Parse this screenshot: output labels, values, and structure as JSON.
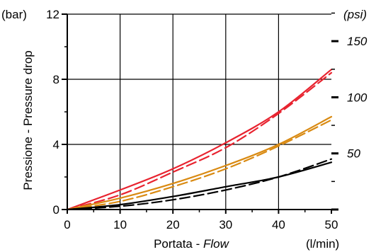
{
  "chart_data": {
    "type": "line",
    "ylabel": "Pressione - Pressure drop",
    "y_unit_left": "(bar)",
    "y_unit_right": "(psi)",
    "xlabel_it": "Portata - ",
    "xlabel_en": "Flow",
    "x_unit": "(l/min)",
    "xlim": [
      0,
      50
    ],
    "ylim": [
      0,
      12
    ],
    "x_ticks": [
      "0",
      "10",
      "20",
      "30",
      "40",
      "50"
    ],
    "y_ticks_left": [
      "0",
      "4",
      "8",
      "12"
    ],
    "y_ticks_right": [
      "50",
      "100",
      "150"
    ],
    "grid": true,
    "series": [
      {
        "color": "#e8232f",
        "dash": false,
        "x": [
          0,
          10,
          20,
          30,
          40,
          50
        ],
        "y": [
          0,
          1.2,
          2.5,
          4.1,
          6.0,
          8.6
        ]
      },
      {
        "color": "#e8232f",
        "dash": true,
        "x": [
          0,
          10,
          20,
          30,
          40,
          50
        ],
        "y": [
          0,
          0.9,
          2.3,
          3.8,
          5.9,
          8.4
        ]
      },
      {
        "color": "#d98a12",
        "dash": false,
        "x": [
          0,
          10,
          20,
          30,
          40,
          50
        ],
        "y": [
          0,
          0.7,
          1.6,
          2.7,
          4.0,
          5.7
        ]
      },
      {
        "color": "#d98a12",
        "dash": true,
        "x": [
          0,
          10,
          20,
          30,
          40,
          50
        ],
        "y": [
          0,
          0.5,
          1.4,
          2.5,
          3.9,
          5.5
        ]
      },
      {
        "color": "#000000",
        "dash": false,
        "x": [
          0,
          10,
          20,
          30,
          40,
          50
        ],
        "y": [
          0,
          0.3,
          0.8,
          1.4,
          2.0,
          2.9
        ]
      },
      {
        "color": "#000000",
        "dash": true,
        "x": [
          0,
          10,
          20,
          30,
          40,
          50
        ],
        "y": [
          0,
          0.2,
          0.6,
          1.2,
          2.0,
          3.1
        ]
      }
    ]
  }
}
